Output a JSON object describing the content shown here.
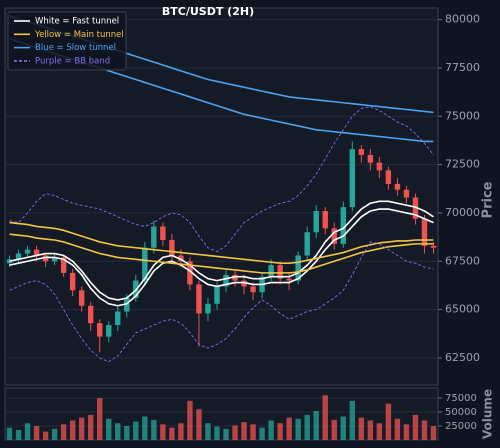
{
  "chart_data": [
    {
      "type": "candlestick",
      "title": "BTC/USDT (2H)",
      "y_label": "Price",
      "ylim": [
        61100,
        80600
      ],
      "yticks": [
        62500,
        65000,
        67500,
        70000,
        72500,
        75000,
        77500,
        80000
      ],
      "grid": true,
      "legend": "upper left",
      "up_color": "#26a69a",
      "down_color": "#ef5350",
      "open": [
        67400,
        67600,
        67900,
        68100,
        67800,
        67500,
        67700,
        66900,
        66000,
        65200,
        64300,
        63600,
        64200,
        64900,
        65600,
        66500,
        68200,
        69300,
        68600,
        67800,
        67500,
        66300,
        64800,
        65300,
        66200,
        66800,
        66500,
        66200,
        65900,
        66700,
        67300,
        66600,
        66500,
        67800,
        69000,
        70100,
        69200,
        68400,
        70300,
        73300,
        73000,
        72600,
        72200,
        71500,
        71200,
        70800,
        69700,
        68300
      ],
      "high": [
        67800,
        68100,
        68300,
        68300,
        67900,
        67900,
        67800,
        67100,
        66200,
        65400,
        64500,
        64400,
        65200,
        65800,
        66800,
        68500,
        69600,
        69500,
        68900,
        68100,
        67700,
        66500,
        65600,
        66400,
        67100,
        67000,
        66800,
        66400,
        66900,
        67600,
        67500,
        66900,
        68000,
        69300,
        70400,
        70300,
        69500,
        70600,
        73700,
        73500,
        73300,
        72900,
        72400,
        71800,
        71400,
        71000,
        69900,
        68500
      ],
      "low": [
        67200,
        67400,
        67700,
        67500,
        67200,
        67300,
        66700,
        65700,
        64900,
        63900,
        62800,
        63300,
        63900,
        64600,
        65400,
        66300,
        67900,
        68300,
        67500,
        67200,
        66000,
        63100,
        64400,
        65000,
        65900,
        66200,
        65800,
        65500,
        65600,
        66400,
        66300,
        66000,
        66300,
        67600,
        68700,
        68900,
        68100,
        68200,
        70100,
        72600,
        72200,
        71800,
        71200,
        70900,
        70500,
        69400,
        67900,
        67900
      ],
      "close": [
        67600,
        67900,
        68100,
        67800,
        67500,
        67700,
        66900,
        66000,
        65200,
        64300,
        63600,
        64200,
        64900,
        65600,
        66500,
        68200,
        69300,
        68600,
        67800,
        67500,
        66300,
        64800,
        65300,
        66200,
        66800,
        66500,
        66200,
        65900,
        66700,
        67300,
        66600,
        66500,
        67800,
        69000,
        70100,
        69200,
        68400,
        70300,
        73300,
        73000,
        72600,
        72200,
        71500,
        71200,
        70800,
        69700,
        68300,
        68200
      ],
      "lines": [
        {
          "name": "White = Fast tunnel",
          "color": "#ffffff",
          "dashed": false,
          "upper": [
            67500,
            67600,
            67700,
            67800,
            67900,
            67900,
            67800,
            67500,
            67000,
            66400,
            65900,
            65600,
            65500,
            65600,
            66000,
            66600,
            67300,
            67700,
            67800,
            67600,
            67300,
            66900,
            66600,
            66500,
            66600,
            66700,
            66700,
            66600,
            66600,
            66700,
            66700,
            66700,
            66900,
            67300,
            67800,
            68500,
            69000,
            69200,
            69700,
            70200,
            70500,
            70600,
            70600,
            70500,
            70400,
            70300,
            70100,
            69800
          ],
          "lower": [
            67300,
            67400,
            67500,
            67600,
            67700,
            67700,
            67600,
            67300,
            66800,
            66100,
            65600,
            65300,
            65200,
            65300,
            65700,
            66300,
            67000,
            67400,
            67500,
            67300,
            67000,
            66600,
            66300,
            66200,
            66300,
            66400,
            66400,
            66300,
            66300,
            66400,
            66400,
            66400,
            66600,
            67000,
            67500,
            68100,
            68600,
            68800,
            69300,
            69800,
            70100,
            70200,
            70200,
            70100,
            70000,
            69900,
            69700,
            69500
          ]
        },
        {
          "name": "Yellow = Main tunnel",
          "color": "#f5c542",
          "dashed": false,
          "upper": [
            69500,
            69450,
            69400,
            69300,
            69250,
            69200,
            69100,
            68950,
            68800,
            68650,
            68500,
            68400,
            68300,
            68250,
            68200,
            68150,
            68100,
            68050,
            68000,
            67950,
            67900,
            67850,
            67800,
            67750,
            67700,
            67650,
            67600,
            67550,
            67500,
            67450,
            67400,
            67400,
            67450,
            67550,
            67650,
            67750,
            67850,
            67950,
            68100,
            68250,
            68350,
            68450,
            68500,
            68550,
            68550,
            68600,
            68600,
            68600
          ],
          "lower": [
            68900,
            68850,
            68800,
            68700,
            68650,
            68600,
            68500,
            68350,
            68200,
            68050,
            67900,
            67800,
            67700,
            67650,
            67600,
            67550,
            67500,
            67450,
            67400,
            67350,
            67300,
            67250,
            67200,
            67150,
            67100,
            67050,
            67000,
            66950,
            66900,
            66900,
            66900,
            66900,
            66950,
            67050,
            67200,
            67350,
            67500,
            67650,
            67800,
            67950,
            68050,
            68150,
            68250,
            68300,
            68350,
            68400,
            68400,
            68400
          ]
        },
        {
          "name": "Blue = Slow tunnel",
          "color": "#4aa3f0",
          "dashed": false,
          "upper": [
            80200,
            80050,
            79900,
            79750,
            79600,
            79450,
            79300,
            79150,
            79000,
            78850,
            78700,
            78550,
            78400,
            78250,
            78100,
            77950,
            77800,
            77650,
            77500,
            77350,
            77200,
            77050,
            76900,
            76800,
            76700,
            76600,
            76500,
            76400,
            76300,
            76200,
            76100,
            76000,
            75950,
            75900,
            75850,
            75800,
            75750,
            75700,
            75650,
            75600,
            75550,
            75500,
            75450,
            75400,
            75350,
            75300,
            75250,
            75200
          ],
          "lower": [
            79000,
            78850,
            78700,
            78550,
            78400,
            78250,
            78100,
            77950,
            77800,
            77650,
            77500,
            77350,
            77200,
            77050,
            76900,
            76750,
            76600,
            76450,
            76300,
            76150,
            76000,
            75850,
            75700,
            75550,
            75400,
            75250,
            75100,
            75000,
            74900,
            74800,
            74700,
            74600,
            74500,
            74400,
            74300,
            74250,
            74200,
            74150,
            74100,
            74050,
            74000,
            73950,
            73900,
            73850,
            73800,
            73750,
            73700,
            73700
          ]
        },
        {
          "name": "Purple = BB band",
          "color": "#8a6cf0",
          "dashed": true,
          "upper": [
            69600,
            69500,
            70000,
            70600,
            71000,
            70900,
            70700,
            70500,
            70400,
            70300,
            70200,
            70000,
            69800,
            69600,
            69400,
            69300,
            69500,
            69800,
            70000,
            69900,
            69500,
            68800,
            68200,
            68000,
            68300,
            68900,
            69500,
            69800,
            70100,
            70300,
            70500,
            70600,
            70900,
            71400,
            72000,
            72800,
            73600,
            74300,
            75000,
            75400,
            75500,
            75300,
            75000,
            74700,
            74500,
            74100,
            73600,
            73000
          ],
          "lower": [
            66000,
            66200,
            66400,
            66500,
            66300,
            65800,
            65000,
            64200,
            63500,
            62900,
            62500,
            62300,
            62600,
            63200,
            63800,
            64000,
            64200,
            64400,
            64500,
            64300,
            63800,
            63200,
            63000,
            63200,
            63500,
            64000,
            64600,
            65100,
            65500,
            65200,
            64800,
            64500,
            64700,
            64900,
            65000,
            65300,
            65600,
            66000,
            66800,
            67700,
            68500,
            68400,
            68100,
            67800,
            67500,
            67400,
            67200,
            67100
          ]
        }
      ]
    },
    {
      "type": "bar",
      "y_label": "Volume",
      "ylim": [
        0,
        93000
      ],
      "yticks": [
        25000,
        50000,
        75000
      ],
      "grid": true,
      "values": [
        22000,
        18000,
        30000,
        25000,
        15000,
        20000,
        28000,
        35000,
        40000,
        45000,
        75000,
        38000,
        30000,
        25000,
        33000,
        42000,
        36000,
        28000,
        22000,
        30000,
        70000,
        55000,
        30000,
        24000,
        20000,
        26000,
        32000,
        28000,
        22000,
        35000,
        30000,
        40000,
        38000,
        45000,
        52000,
        80000,
        36000,
        42000,
        70000,
        40000,
        35000,
        30000,
        65000,
        38000,
        28000,
        45000,
        35000,
        25000
      ]
    }
  ]
}
